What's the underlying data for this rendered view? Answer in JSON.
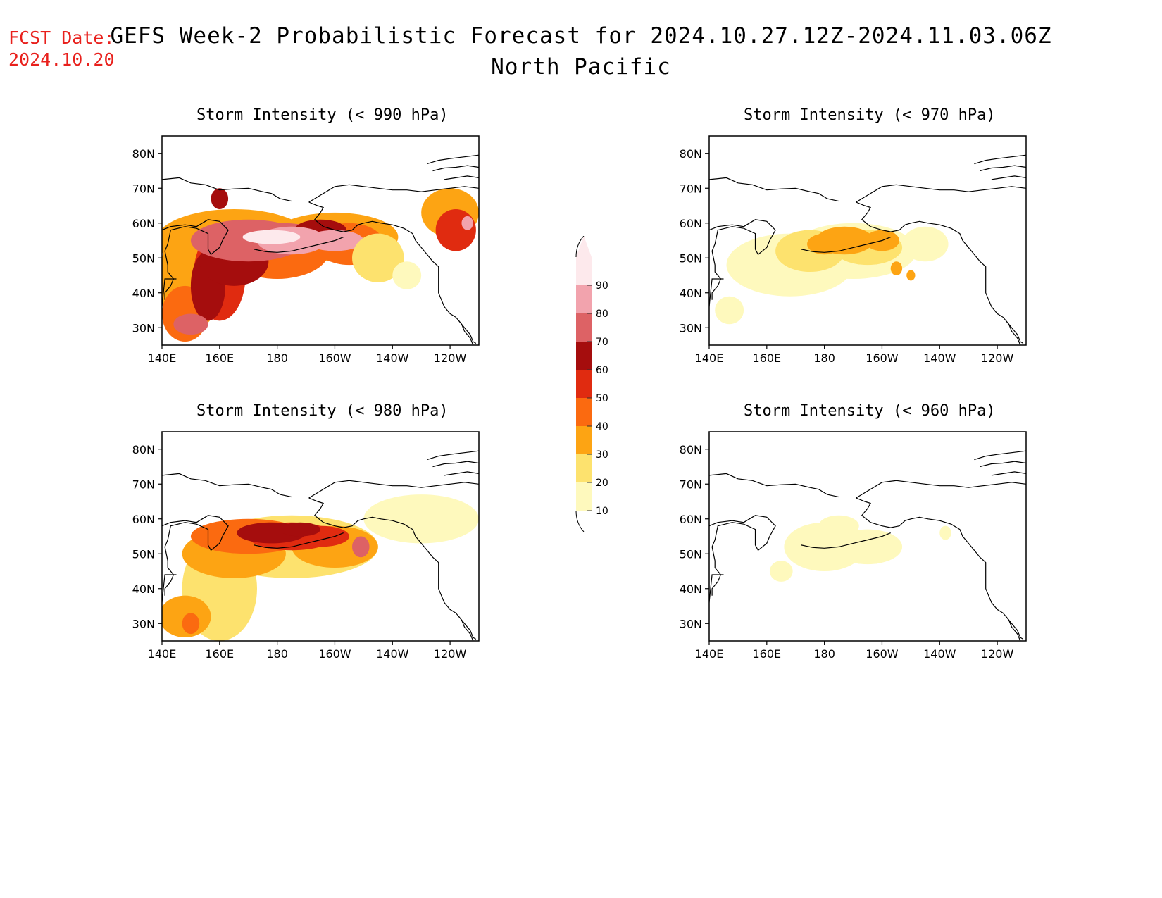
{
  "fcst_date": {
    "label": "FCST Date:",
    "value": "2024.10.20"
  },
  "title": {
    "line1": "GEFS Week-2 Probabilistic Forecast for 2024.10.27.12Z-2024.11.03.06Z",
    "line2": "North Pacific"
  },
  "axes": {
    "lat_ticks": [
      "80N",
      "70N",
      "60N",
      "50N",
      "40N",
      "30N"
    ],
    "lon_ticks": [
      "140E",
      "160E",
      "180",
      "160W",
      "140W",
      "120W"
    ]
  },
  "panels": [
    {
      "id": "p990",
      "title": "Storm Intensity (< 990 hPa)",
      "level": "high"
    },
    {
      "id": "p970",
      "title": "Storm Intensity (< 970 hPa)",
      "level": "mid-low"
    },
    {
      "id": "p980",
      "title": "Storm Intensity (< 980 hPa)",
      "level": "mid"
    },
    {
      "id": "p960",
      "title": "Storm Intensity (< 960 hPa)",
      "level": "low"
    }
  ],
  "colorbar": {
    "labels": [
      "90",
      "80",
      "70",
      "60",
      "50",
      "40",
      "30",
      "20",
      "10"
    ],
    "colors": [
      "#fde9ec",
      "#f2a3ad",
      "#dd6265",
      "#a50d0d",
      "#e02b10",
      "#fb6a10",
      "#fda413",
      "#fde26e",
      "#fef9bd"
    ]
  },
  "colors": {
    "fcst_date": "#e8201c",
    "coast": "#000000"
  }
}
